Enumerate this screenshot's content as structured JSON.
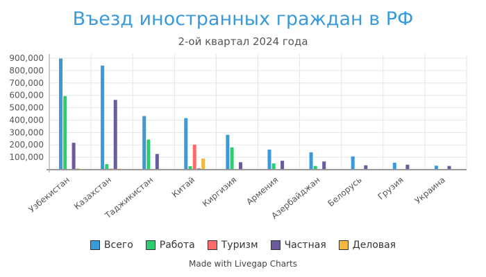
{
  "chart_data": {
    "type": "bar",
    "title": "Въезд иностранных граждан в РФ",
    "subtitle": "2-ой квартал 2024 года",
    "categories": [
      "Узбекистан",
      "Казахстан",
      "Таджикистан",
      "Китай",
      "Киргизия",
      "Армения",
      "Азербайджан",
      "Белорусь",
      "Грузия",
      "Украина"
    ],
    "series": [
      {
        "name": "Всего",
        "color": "#3a9ad9",
        "values": [
          897000,
          840000,
          433000,
          416000,
          281000,
          162000,
          140000,
          107000,
          56000,
          32000
        ]
      },
      {
        "name": "Работа",
        "color": "#2ecc71",
        "values": [
          594000,
          45000,
          243000,
          28000,
          180000,
          50000,
          30000,
          3000,
          2000,
          1000
        ]
      },
      {
        "name": "Туризм",
        "color": "#ff6b6b",
        "values": [
          5000,
          8000,
          3000,
          202000,
          3000,
          4000,
          3000,
          2000,
          2000,
          1000
        ]
      },
      {
        "name": "Частная",
        "color": "#6b5b9a",
        "values": [
          217000,
          563000,
          127000,
          10000,
          60000,
          72000,
          66000,
          35000,
          40000,
          30000
        ]
      },
      {
        "name": "Деловая",
        "color": "#f5b942",
        "values": [
          10000,
          8000,
          4000,
          90000,
          6000,
          3000,
          3000,
          2000,
          1000,
          1000
        ]
      }
    ],
    "ylim": [
      0,
      900000
    ],
    "yticks": [
      "100,000",
      "200,000",
      "300,000",
      "400,000",
      "500,000",
      "600,000",
      "700,000",
      "800,000",
      "900,000"
    ],
    "grid": true,
    "legend": "bottom"
  },
  "credit": "Made with Livegap Charts"
}
